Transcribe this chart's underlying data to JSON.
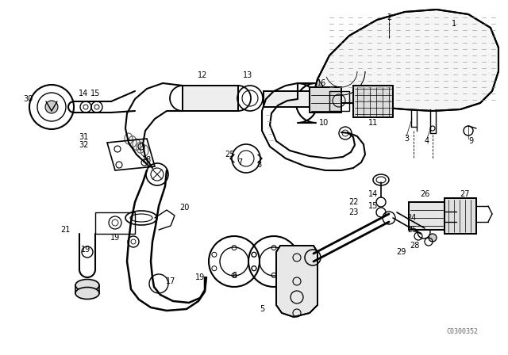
{
  "background_color": "#ffffff",
  "line_color": "#000000",
  "watermark": "C0300352",
  "fig_width": 6.4,
  "fig_height": 4.48,
  "dpi": 100
}
